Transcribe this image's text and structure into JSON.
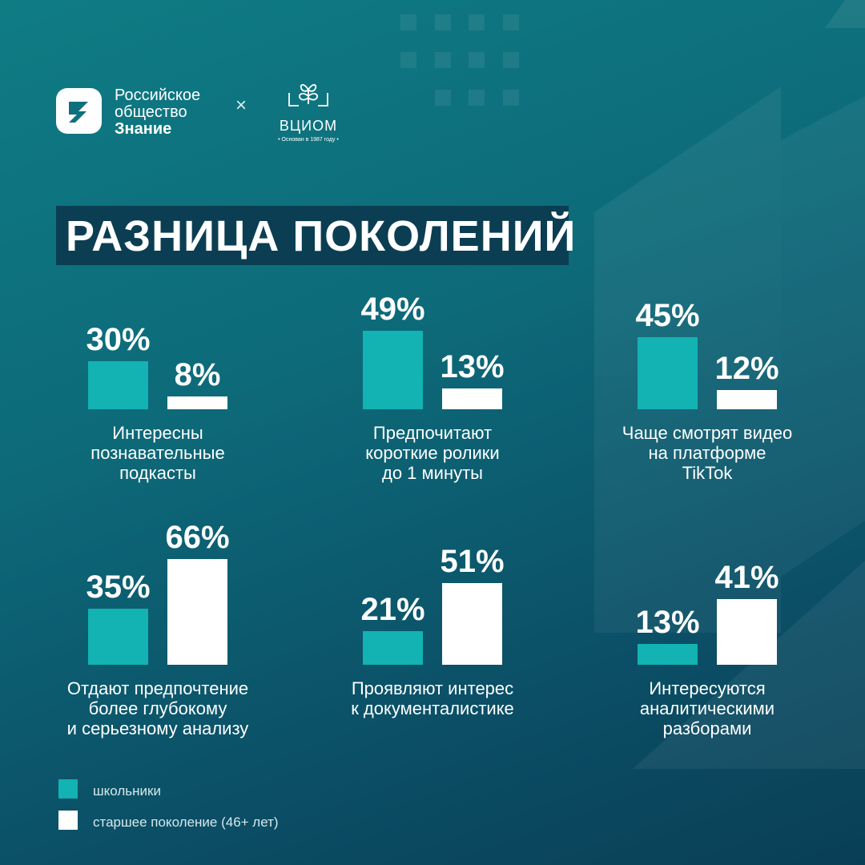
{
  "colors": {
    "students": "#12b3b2",
    "older": "#ffffff",
    "title_bg": "#0b3e52"
  },
  "header": {
    "logo_left": {
      "icon": "znanie-logo-icon",
      "line1": "Российское",
      "line2": "общество",
      "line3": "Знание"
    },
    "separator": "×",
    "logo_right": {
      "icon": "tree-icon",
      "name": "ВЦИОМ",
      "tagline": "• Основан в 1987 году •"
    }
  },
  "title": "РАЗНИЦА ПОКОЛЕНИЙ",
  "chart_data": {
    "type": "bar",
    "title": "РАЗНИЦА ПОКОЛЕНИЙ",
    "unit": "%",
    "series_names": [
      "школьники",
      "старшее поколение (46+ лет)"
    ],
    "groups": [
      {
        "students": 30,
        "older": 8,
        "students_label": "30%",
        "older_label": "8%",
        "caption": [
          "Интересны",
          "познавательные",
          "подкасты"
        ]
      },
      {
        "students": 49,
        "older": 13,
        "students_label": "49%",
        "older_label": "13%",
        "caption": [
          "Предпочитают",
          "короткие ролики",
          "до 1 минуты"
        ]
      },
      {
        "students": 45,
        "older": 12,
        "students_label": "45%",
        "older_label": "12%",
        "caption": [
          "Чаще смотрят видео",
          "на платформе",
          "TikTok"
        ]
      },
      {
        "students": 35,
        "older": 66,
        "students_label": "35%",
        "older_label": "66%",
        "caption": [
          "Отдают предпочтение",
          "более глубокому",
          "и серьезному анализу"
        ]
      },
      {
        "students": 21,
        "older": 51,
        "students_label": "21%",
        "older_label": "51%",
        "caption": [
          "Проявляют интерес",
          "к документалистике"
        ]
      },
      {
        "students": 13,
        "older": 41,
        "students_label": "13%",
        "older_label": "41%",
        "caption": [
          "Интересуются",
          "аналитическими",
          "разборами"
        ]
      }
    ]
  },
  "legend": [
    {
      "label": "школьники",
      "color": "#12b3b2"
    },
    {
      "label": "старшее поколение (46+ лет)",
      "color": "#ffffff"
    }
  ]
}
